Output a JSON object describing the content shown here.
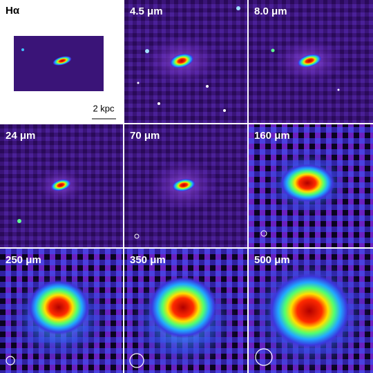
{
  "panels": [
    {
      "label": "Hα"
    },
    {
      "label": "4.5 μm"
    },
    {
      "label": "8.0 μm"
    },
    {
      "label": "24 μm"
    },
    {
      "label": "70 μm"
    },
    {
      "label": "160 μm"
    },
    {
      "label": "250 μm"
    },
    {
      "label": "350 μm"
    },
    {
      "label": "500 μm"
    }
  ],
  "scale_bar": {
    "label": "2 kpc"
  }
}
